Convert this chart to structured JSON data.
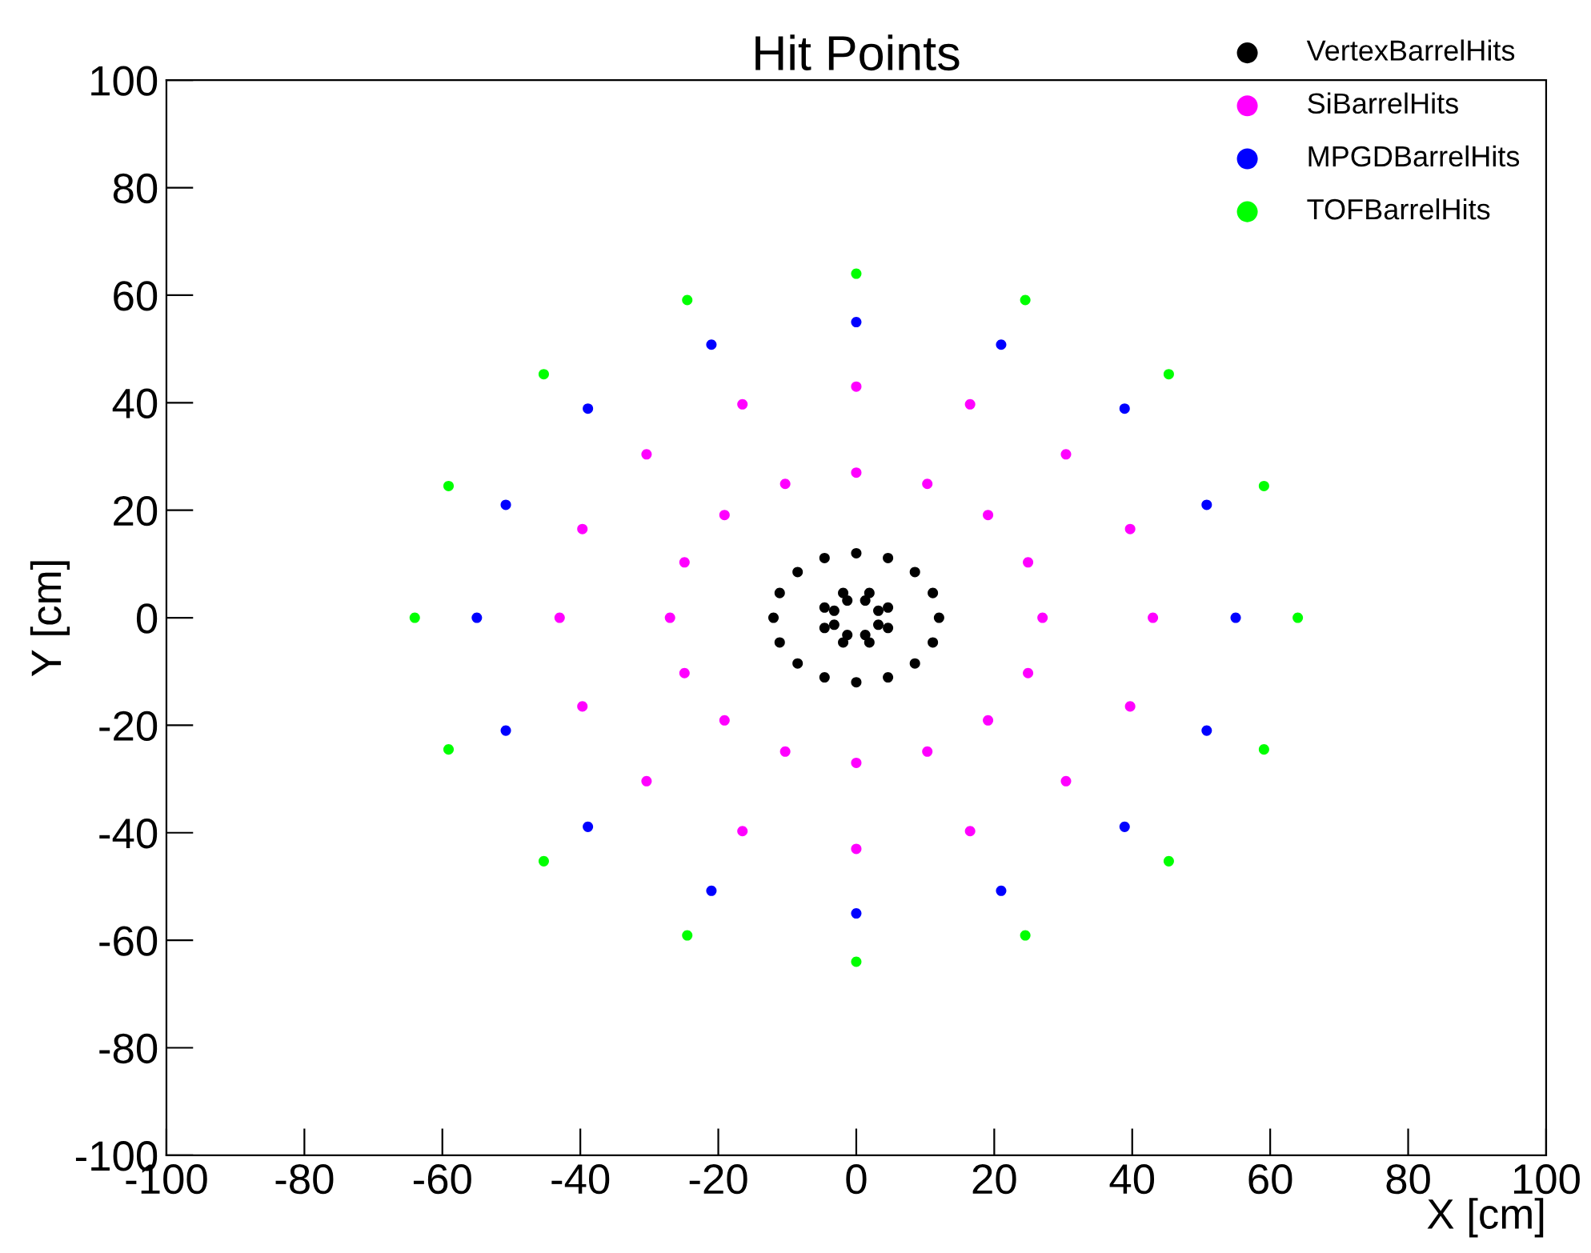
{
  "chart_data": {
    "type": "scatter",
    "title": "Hit Points",
    "xlabel": "X [cm]",
    "ylabel": "Y [cm]",
    "xlim": [
      -100,
      100
    ],
    "ylim": [
      -100,
      100
    ],
    "xticks": [
      -100,
      -80,
      -60,
      -40,
      -20,
      0,
      20,
      40,
      60,
      80,
      100
    ],
    "yticks": [
      -100,
      -80,
      -60,
      -40,
      -20,
      0,
      20,
      40,
      60,
      80,
      100
    ],
    "grid": false,
    "legend": "top right",
    "series": [
      {
        "name": "VertexBarrelHits",
        "color": "#000000",
        "x": [
          12,
          11.1,
          8.5,
          4.6,
          0,
          -4.6,
          -8.5,
          -11.1,
          -12,
          -11.1,
          -8.5,
          -4.6,
          0,
          4.6,
          8.5,
          11.1,
          4.6,
          1.9,
          -1.9,
          -4.6,
          -4.6,
          -1.9,
          1.9,
          4.6,
          3.2,
          1.3,
          -1.3,
          -3.2,
          -3.2,
          -1.3,
          1.3,
          3.2
        ],
        "values": [
          0,
          4.6,
          8.5,
          11.1,
          12,
          11.1,
          8.5,
          4.6,
          0,
          -4.6,
          -8.5,
          -11.1,
          -12,
          -11.1,
          -8.5,
          -4.6,
          1.9,
          4.6,
          4.6,
          1.9,
          -1.9,
          -4.6,
          -4.6,
          -1.9,
          1.3,
          3.2,
          3.2,
          1.3,
          -1.3,
          -3.2,
          -3.2,
          -1.3
        ]
      },
      {
        "name": "SiBarrelHits",
        "color": "#ff00ff",
        "x": [
          27,
          24.9,
          19.1,
          10.3,
          0,
          -10.3,
          -19.1,
          -24.9,
          -27,
          -24.9,
          -19.1,
          -10.3,
          0,
          10.3,
          19.1,
          24.9,
          43,
          39.7,
          30.4,
          16.5,
          0,
          -16.5,
          -30.4,
          -39.7,
          -43,
          -39.7,
          -30.4,
          -16.5,
          0,
          16.5,
          30.4,
          39.7
        ],
        "values": [
          0,
          10.3,
          19.1,
          24.9,
          27,
          24.9,
          19.1,
          10.3,
          0,
          -10.3,
          -19.1,
          -24.9,
          -27,
          -24.9,
          -19.1,
          -10.3,
          0,
          16.5,
          30.4,
          39.7,
          43,
          39.7,
          30.4,
          16.5,
          0,
          -16.5,
          -30.4,
          -39.7,
          -43,
          -39.7,
          -30.4,
          -16.5
        ]
      },
      {
        "name": "MPGDBarrelHits",
        "color": "#0000ff",
        "x": [
          55,
          50.8,
          38.9,
          21.0,
          0,
          -21.0,
          -38.9,
          -50.8,
          -55,
          -50.8,
          -38.9,
          -21.0,
          0,
          21.0,
          38.9,
          50.8
        ],
        "values": [
          0,
          21.0,
          38.9,
          50.8,
          55,
          50.8,
          38.9,
          21.0,
          0,
          -21.0,
          -38.9,
          -50.8,
          -55,
          -50.8,
          -38.9,
          -21.0
        ]
      },
      {
        "name": "TOFBarrelHits",
        "color": "#00ff00",
        "x": [
          64,
          59.1,
          45.3,
          24.5,
          0,
          -24.5,
          -45.3,
          -59.1,
          -64,
          -59.1,
          -45.3,
          -24.5,
          0,
          24.5,
          45.3,
          59.1
        ],
        "values": [
          0,
          24.5,
          45.3,
          59.1,
          64,
          59.1,
          45.3,
          24.5,
          0,
          -24.5,
          -45.3,
          -59.1,
          -64,
          -59.1,
          -45.3,
          -24.5
        ]
      }
    ]
  }
}
